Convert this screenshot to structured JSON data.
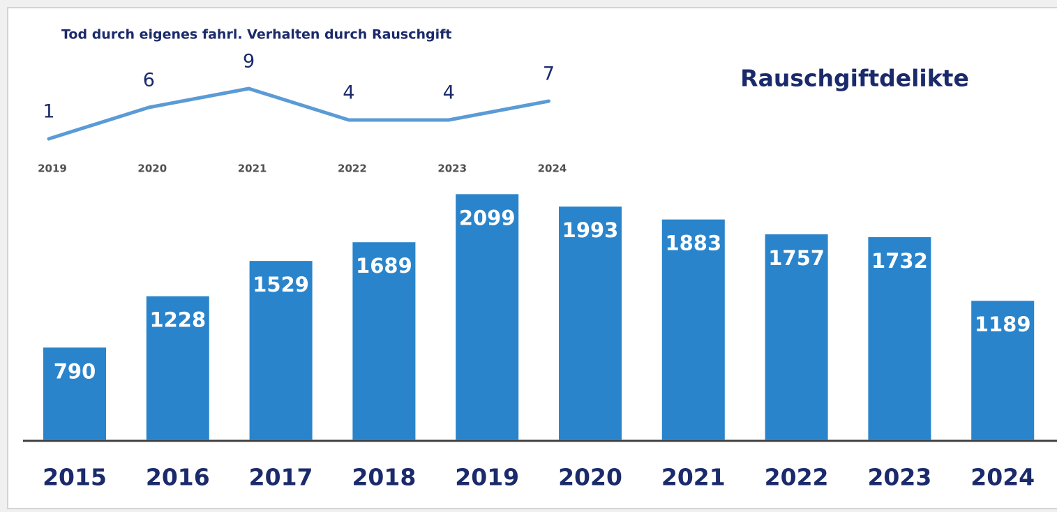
{
  "chart_data": [
    {
      "type": "bar",
      "title": "Rauschgiftdelikte",
      "categories": [
        "2015",
        "2016",
        "2017",
        "2018",
        "2019",
        "2020",
        "2021",
        "2022",
        "2023",
        "2024"
      ],
      "values": [
        790,
        1228,
        1529,
        1689,
        2099,
        1993,
        1883,
        1757,
        1732,
        1189
      ],
      "color": "#2984cb"
    },
    {
      "type": "line",
      "title": "Tod durch eigenes fahrl. Verhalten durch Rauschgift",
      "categories": [
        "2019",
        "2020",
        "2021",
        "2022",
        "2023",
        "2024"
      ],
      "values": [
        1,
        6,
        9,
        4,
        4,
        7
      ],
      "color": "#5b9bd5"
    }
  ]
}
